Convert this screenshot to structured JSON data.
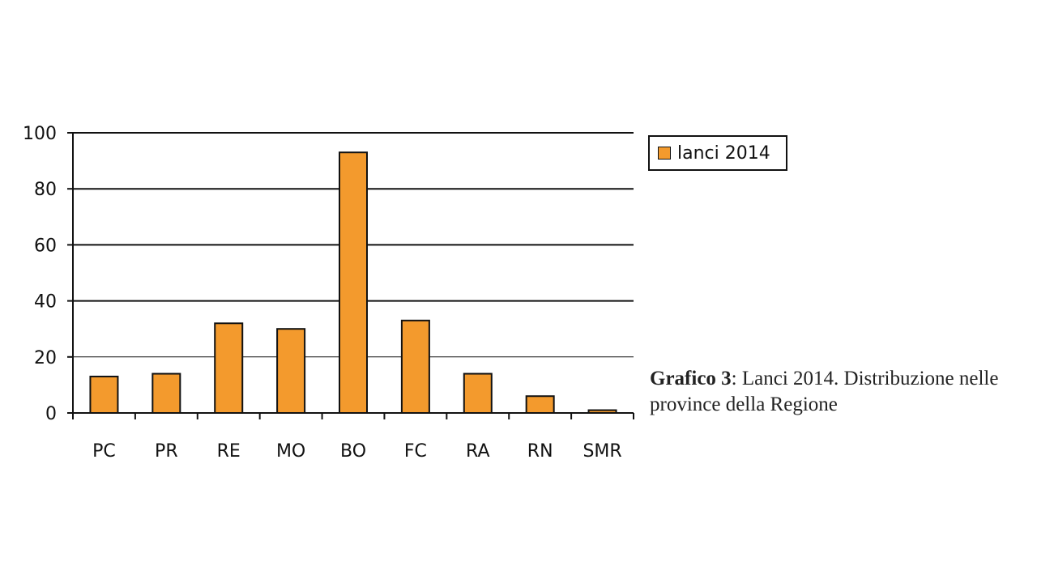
{
  "chart_data": {
    "type": "bar",
    "categories": [
      "PC",
      "PR",
      "RE",
      "MO",
      "BO",
      "FC",
      "RA",
      "RN",
      "SMR"
    ],
    "series": [
      {
        "name": "lanci 2014",
        "values": [
          13,
          14,
          32,
          30,
          93,
          33,
          14,
          6,
          1
        ]
      }
    ],
    "ylim": [
      0,
      100
    ],
    "yticks": [
      "0",
      "20",
      "40",
      "60",
      "80",
      "100"
    ],
    "grid": true,
    "legend_position": "right-top",
    "colors": {
      "bar": "#f39a2d",
      "outline": "#111111"
    }
  },
  "caption": {
    "label": "Grafico 3",
    "text": ": Lanci 2014. Distribuzione nelle province della Regione"
  }
}
